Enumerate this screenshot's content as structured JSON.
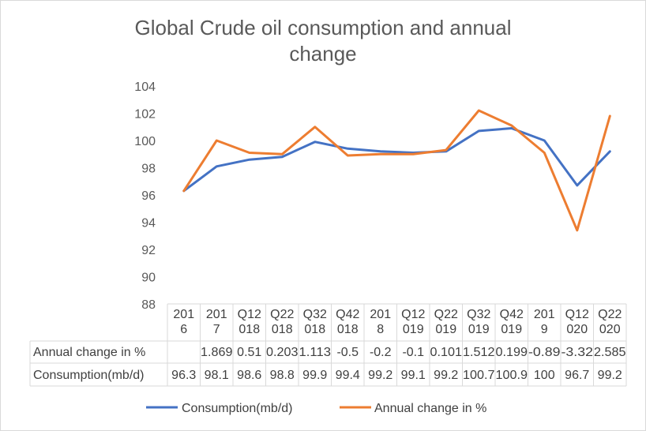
{
  "chart_data": {
    "type": "line",
    "title": "Global Crude oil consumption and annual change",
    "categories": [
      "2016",
      "2017",
      "Q12018",
      "Q22018",
      "Q32018",
      "Q42018",
      "2018",
      "Q12019",
      "Q22019",
      "Q32019",
      "Q42019",
      "2019",
      "Q12020",
      "Q22020"
    ],
    "category_lines": [
      [
        "201",
        "6"
      ],
      [
        "201",
        "7"
      ],
      [
        "Q12",
        "018"
      ],
      [
        "Q22",
        "018"
      ],
      [
        "Q32",
        "018"
      ],
      [
        "Q42",
        "018"
      ],
      [
        "201",
        "8"
      ],
      [
        "Q12",
        "019"
      ],
      [
        "Q22",
        "019"
      ],
      [
        "Q32",
        "019"
      ],
      [
        "Q42",
        "019"
      ],
      [
        "201",
        "9"
      ],
      [
        "Q12",
        "020"
      ],
      [
        "Q22",
        "020"
      ]
    ],
    "ylim": [
      88,
      104
    ],
    "yticks": [
      88,
      90,
      92,
      94,
      96,
      98,
      100,
      102,
      104
    ],
    "grid": false,
    "legend_position": "bottom",
    "series": [
      {
        "name": "Consumption(mb/d)",
        "color": "#4472c4",
        "table_values": [
          "96.3",
          "98.1",
          "98.6",
          "98.8",
          "99.9",
          "99.4",
          "99.2",
          "99.1",
          "99.2",
          "100.7",
          "100.9",
          "100",
          "96.7",
          "99.2"
        ],
        "values": [
          96.3,
          98.1,
          98.6,
          98.8,
          99.9,
          99.4,
          99.2,
          99.1,
          99.2,
          100.7,
          100.9,
          100,
          96.7,
          99.2
        ]
      },
      {
        "name": "Annual change in %",
        "color": "#ed7d31",
        "table_values": [
          "",
          "1.869",
          "0.51",
          "0.203",
          "1.113",
          "-0.5",
          "-0.2",
          "-0.1",
          "0.101",
          "1.512",
          "0.199",
          "-0.89",
          "-3.32",
          "2.585"
        ],
        "values": [
          96.3,
          100.0,
          99.1,
          99.0,
          101.0,
          98.9,
          99.0,
          99.0,
          99.3,
          102.2,
          101.1,
          99.1,
          93.4,
          101.8
        ]
      }
    ]
  }
}
